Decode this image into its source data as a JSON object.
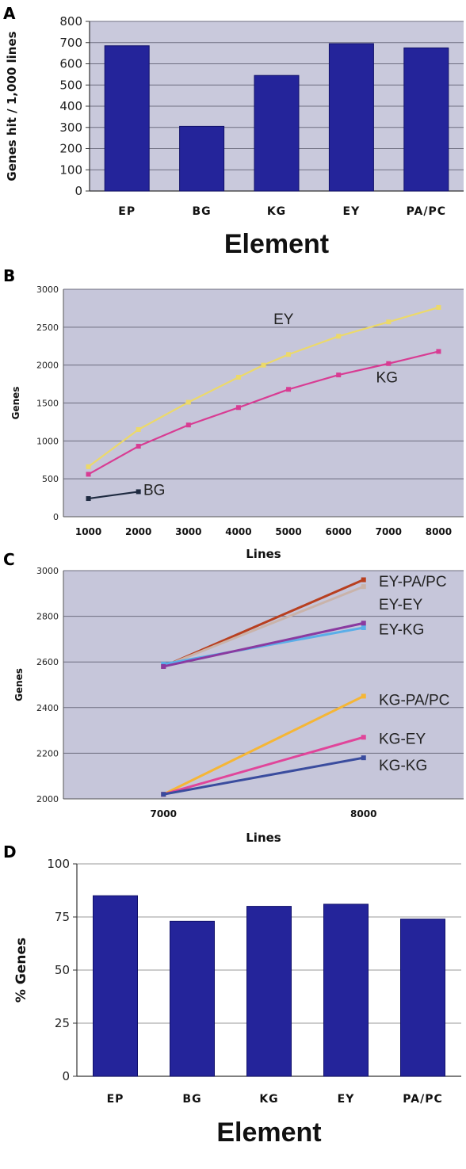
{
  "chart_data": [
    {
      "panel": "A",
      "type": "bar",
      "categories": [
        "EP",
        "BG",
        "KG",
        "EY",
        "PA/PC"
      ],
      "values": [
        685,
        305,
        545,
        695,
        675
      ],
      "xlabel": "Element",
      "ylabel": "Genes hit / 1,000 lines",
      "ylim": [
        0,
        800
      ],
      "yticks": [
        0,
        100,
        200,
        300,
        400,
        500,
        600,
        700,
        800
      ],
      "grid": true,
      "colors": {
        "bar": "#24249a",
        "plot_bg": "#c9c9dc"
      }
    },
    {
      "panel": "B",
      "type": "line",
      "xlabel": "Lines",
      "ylabel": "Genes",
      "ylim": [
        0,
        3000
      ],
      "xticks": [
        1000,
        2000,
        3000,
        4000,
        5000,
        6000,
        7000,
        8000
      ],
      "yticks": [
        0,
        500,
        1000,
        1500,
        2000,
        2500,
        3000
      ],
      "grid": true,
      "series": [
        {
          "name": "EY",
          "color": "#ecd96a",
          "x": [
            1000,
            2000,
            3000,
            4000,
            4500,
            5000,
            6000,
            7000,
            8000
          ],
          "y": [
            660,
            1150,
            1510,
            1840,
            2000,
            2140,
            2380,
            2570,
            2760
          ]
        },
        {
          "name": "KG",
          "color": "#d83c93",
          "x": [
            1000,
            2000,
            3000,
            4000,
            5000,
            6000,
            7000,
            8000
          ],
          "y": [
            560,
            930,
            1210,
            1440,
            1680,
            1870,
            2020,
            2180
          ]
        },
        {
          "name": "BG",
          "color": "#1e2a40",
          "x": [
            1000,
            2000
          ],
          "y": [
            240,
            330
          ]
        }
      ]
    },
    {
      "panel": "C",
      "type": "line",
      "xlabel": "Lines",
      "ylabel": "Genes",
      "ylim": [
        2000,
        3000
      ],
      "xticks": [
        7000,
        8000
      ],
      "yticks": [
        2000,
        2200,
        2400,
        2600,
        2800,
        3000
      ],
      "grid": true,
      "series": [
        {
          "name": "EY-PA/PC",
          "color": "#b83f1f",
          "x": [
            7000,
            8000
          ],
          "y": [
            2580,
            2960
          ]
        },
        {
          "name": "EY-EY",
          "color": "#c9b3aa",
          "x": [
            7000,
            8000
          ],
          "y": [
            2580,
            2930
          ]
        },
        {
          "name": "EY-KG",
          "color": "#5aaee8",
          "x": [
            7000,
            8000
          ],
          "y": [
            2590,
            2750
          ]
        },
        {
          "name": "EY-KG",
          "color": "#8a3aa0",
          "x": [
            7000,
            8000
          ],
          "y": [
            2580,
            2770
          ]
        },
        {
          "name": "KG-PA/PC",
          "color": "#f5b636",
          "x": [
            7000,
            8000
          ],
          "y": [
            2020,
            2450
          ]
        },
        {
          "name": "KG-EY",
          "color": "#e0459a",
          "x": [
            7000,
            8000
          ],
          "y": [
            2020,
            2270
          ]
        },
        {
          "name": "KG-KG",
          "color": "#3a4c9e",
          "x": [
            7000,
            8000
          ],
          "y": [
            2020,
            2180
          ]
        }
      ],
      "labels": [
        "EY-PA/PC",
        "EY-EY",
        "EY-KG",
        "KG-PA/PC",
        "KG-EY",
        "KG-KG"
      ]
    },
    {
      "panel": "D",
      "type": "bar",
      "categories": [
        "EP",
        "BG",
        "KG",
        "EY",
        "PA/PC"
      ],
      "values": [
        85,
        73,
        80,
        81,
        74
      ],
      "xlabel": "Element",
      "ylabel": "% Genes",
      "ylim": [
        0,
        100
      ],
      "yticks": [
        0,
        25,
        50,
        75,
        100
      ],
      "grid": true,
      "colors": {
        "bar": "#24249a",
        "plot_bg": "#c9c9dc"
      }
    }
  ]
}
